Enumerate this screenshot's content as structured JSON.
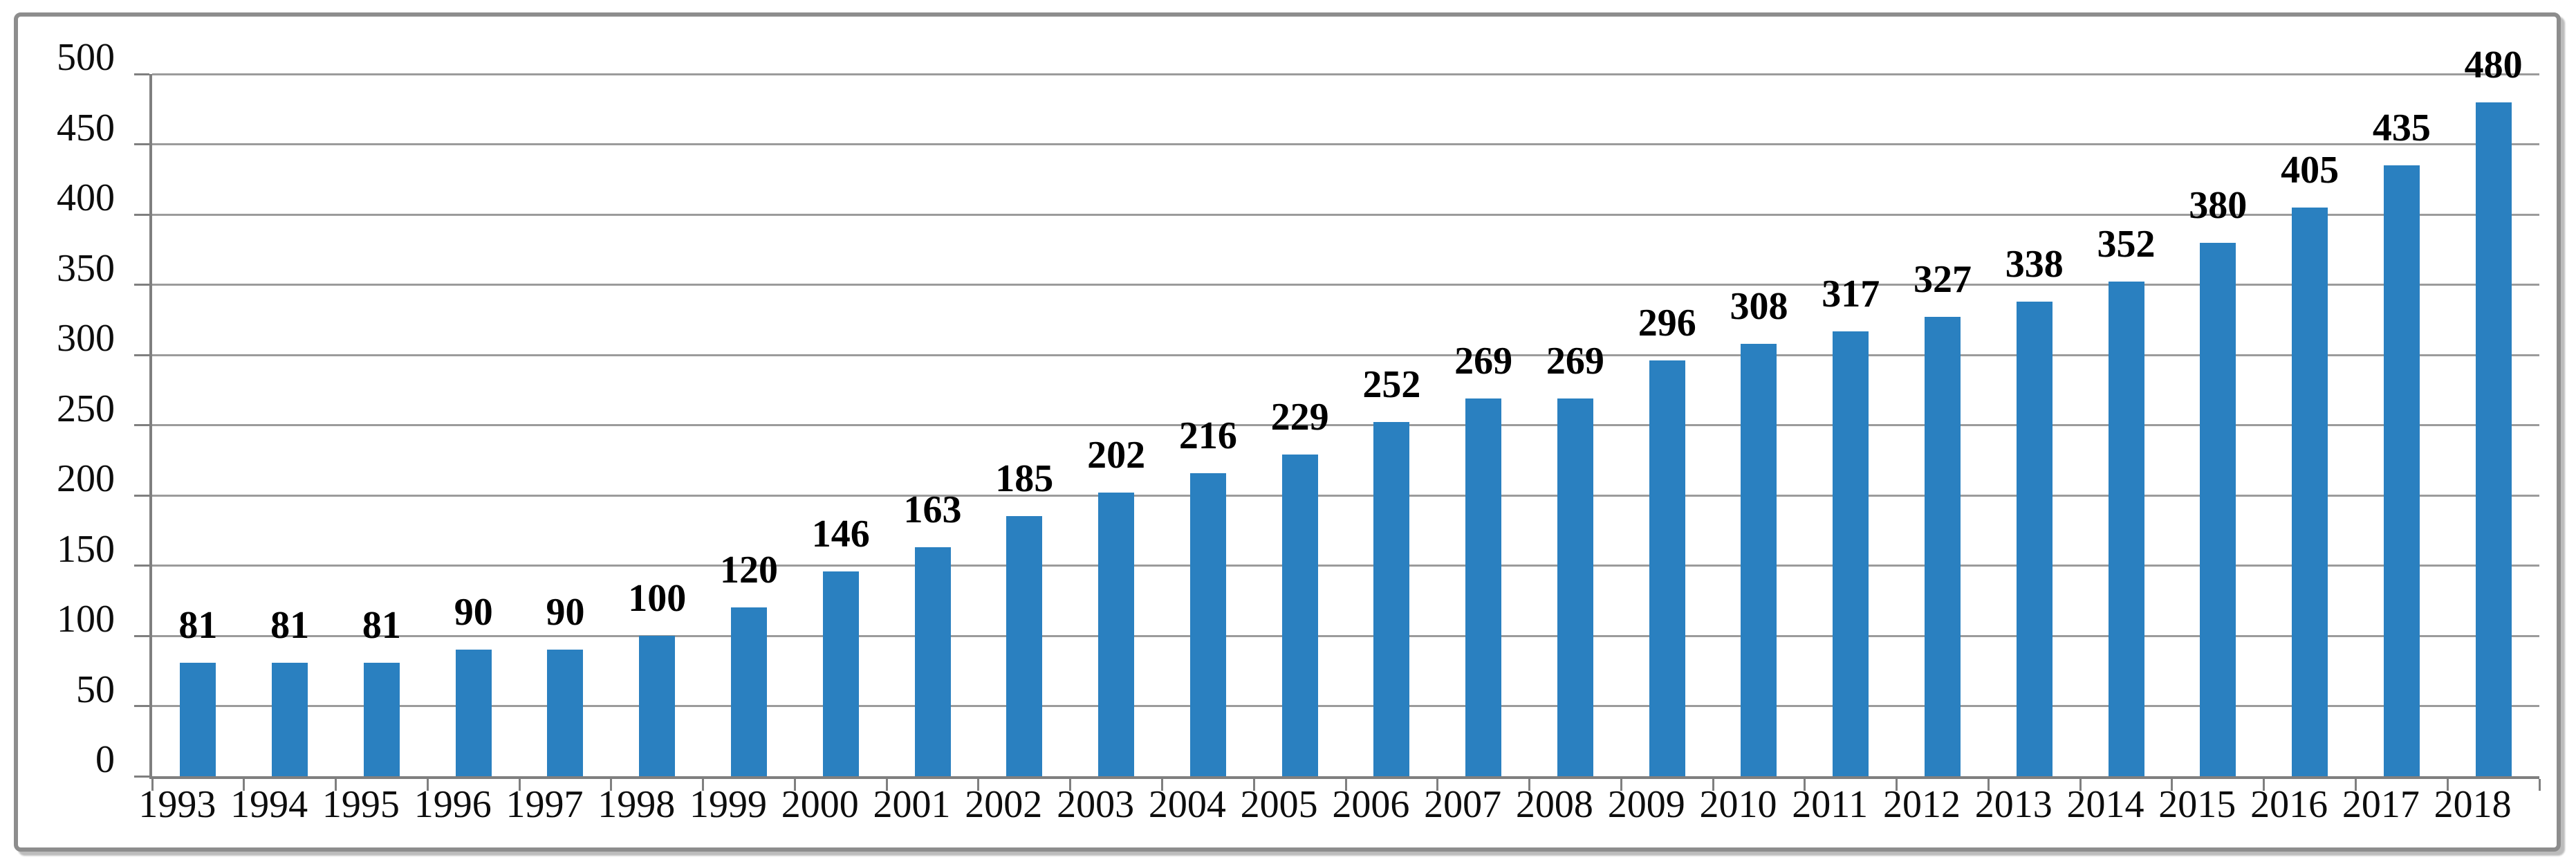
{
  "chart_data": {
    "type": "bar",
    "title": "",
    "xlabel": "",
    "ylabel": "",
    "categories": [
      "1993",
      "1994",
      "1995",
      "1996",
      "1997",
      "1998",
      "1999",
      "2000",
      "2001",
      "2002",
      "2003",
      "2004",
      "2005",
      "2006",
      "2007",
      "2008",
      "2009",
      "2010",
      "2011",
      "2012",
      "2013",
      "2014",
      "2015",
      "2016",
      "2017",
      "2018"
    ],
    "values": [
      81,
      81,
      81,
      90,
      90,
      100,
      120,
      146,
      163,
      185,
      202,
      216,
      229,
      252,
      269,
      269,
      296,
      308,
      317,
      327,
      338,
      352,
      380,
      405,
      435,
      480
    ],
    "data_labels": [
      "81",
      "81",
      "81",
      "90",
      "90",
      "100",
      "120",
      "146",
      "163",
      "185",
      "202",
      "216",
      "229",
      "252",
      "269",
      "269",
      "296",
      "308",
      "317",
      "327",
      "338",
      "352",
      "380",
      "405",
      "435",
      "480"
    ],
    "ylim": [
      0,
      500
    ],
    "ytick_step": 50,
    "ytick_labels": [
      "0",
      "50",
      "100",
      "150",
      "200",
      "250",
      "300",
      "350",
      "400",
      "450",
      "500"
    ],
    "grid": "horizontal",
    "legend": "none",
    "bar_color": "#2A80C0",
    "gridline_color": "#9b9b9b",
    "axis_color": "#7f7f7f",
    "frame_border_color": "#8d8d8d",
    "text_color": "#0d0d0d"
  }
}
